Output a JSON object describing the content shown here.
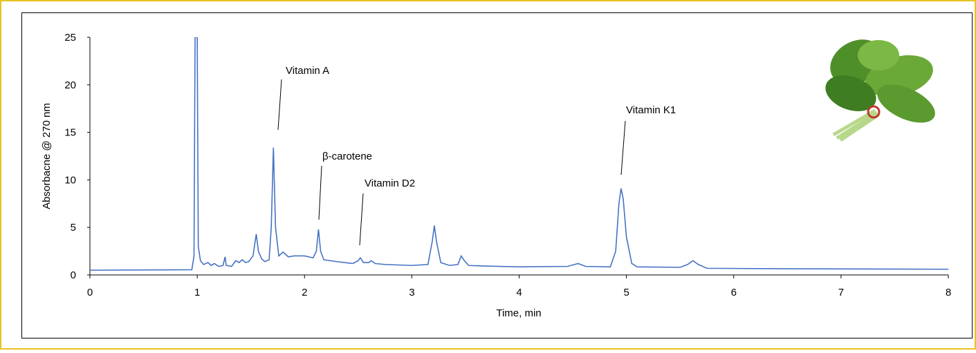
{
  "chart_data": {
    "type": "line",
    "xlabel": "Time, min",
    "ylabel": "Absorbacne @ 270 nm",
    "x": [
      0,
      0.95,
      0.97,
      0.98,
      0.99,
      1.0,
      1.01,
      1.03,
      1.06,
      1.1,
      1.13,
      1.16,
      1.2,
      1.24,
      1.26,
      1.27,
      1.32,
      1.36,
      1.39,
      1.42,
      1.45,
      1.48,
      1.52,
      1.55,
      1.57,
      1.6,
      1.63,
      1.67,
      1.69,
      1.71,
      1.73,
      1.76,
      1.8,
      1.85,
      1.9,
      2.0,
      2.08,
      2.11,
      2.13,
      2.15,
      2.18,
      2.3,
      2.45,
      2.5,
      2.52,
      2.55,
      2.6,
      2.62,
      2.66,
      2.75,
      3.0,
      3.15,
      3.19,
      3.21,
      3.23,
      3.27,
      3.35,
      3.43,
      3.46,
      3.49,
      3.53,
      3.65,
      4.0,
      4.45,
      4.55,
      4.62,
      4.85,
      4.9,
      4.93,
      4.95,
      4.97,
      5.0,
      5.05,
      5.1,
      5.5,
      5.57,
      5.62,
      5.67,
      5.75,
      6.5,
      8
    ],
    "series": [
      {
        "color": "#4472c4",
        "values": [
          0.5,
          0.55,
          2,
          25,
          25,
          25,
          3,
          1.5,
          1.1,
          1.3,
          1.0,
          1.2,
          0.9,
          1.0,
          1.9,
          1.0,
          0.9,
          1.5,
          1.3,
          1.6,
          1.3,
          1.4,
          2.0,
          4.3,
          2.5,
          1.7,
          1.4,
          1.6,
          5,
          13.4,
          5,
          2.0,
          2.4,
          1.9,
          2.0,
          2.0,
          1.8,
          2.5,
          4.8,
          2.5,
          1.6,
          1.4,
          1.2,
          1.5,
          1.8,
          1.3,
          1.3,
          1.5,
          1.2,
          1.1,
          1.0,
          1.1,
          3.5,
          5.2,
          3.5,
          1.3,
          1.0,
          1.1,
          2.0,
          1.5,
          1.0,
          0.95,
          0.85,
          0.9,
          1.2,
          0.9,
          0.85,
          2.5,
          7.5,
          9.1,
          8,
          4,
          1.2,
          0.85,
          0.8,
          1.1,
          1.5,
          1.1,
          0.7,
          0.65,
          0.6
        ]
      }
    ],
    "xlim": [
      0,
      8
    ],
    "xticks": [
      0,
      1,
      2,
      3,
      4,
      5,
      6,
      7,
      8
    ],
    "ylim": [
      0,
      25
    ],
    "yticks": [
      0,
      5,
      10,
      15,
      20,
      25
    ],
    "grid": false,
    "annotations": [
      "Vitamin A",
      "β-carotene",
      "Vitamin D2",
      "Vitamin K1"
    ]
  }
}
